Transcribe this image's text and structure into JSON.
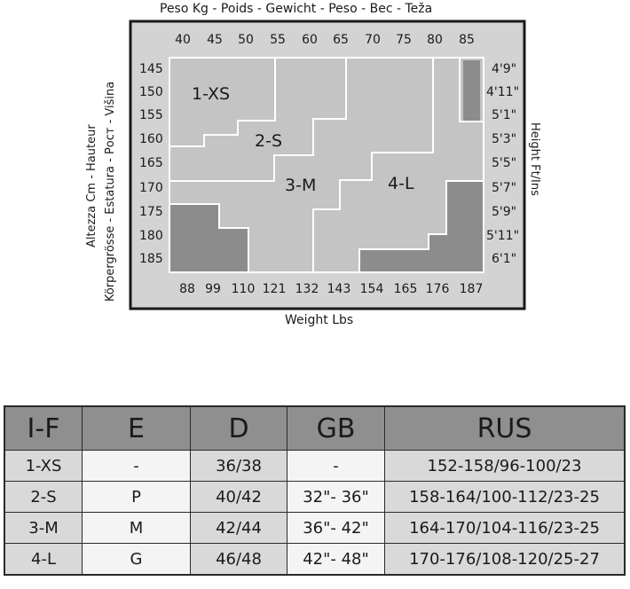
{
  "chart": {
    "top_label": "Peso Kg - Poids - Gewicht - Peso - Bec - Teža",
    "bottom_label": "Weight Lbs",
    "left_label_1": "Altezza Cm - Hauteur",
    "left_label_2": "Körpergrösse - Estatura - Рост - Višina",
    "right_label": "Height Ft/Ins",
    "kg_ticks": [
      "40",
      "45",
      "50",
      "55",
      "60",
      "65",
      "70",
      "75",
      "80",
      "85"
    ],
    "lbs_ticks": [
      "88",
      "99",
      "110",
      "121",
      "132",
      "143",
      "154",
      "165",
      "176",
      "187"
    ],
    "cm_ticks": [
      "145",
      "150",
      "155",
      "160",
      "165",
      "170",
      "175",
      "180",
      "185"
    ],
    "ft_ticks": [
      "4'9\"",
      "4'11\"",
      "5'1\"",
      "5'3\"",
      "5'5\"",
      "5'7\"",
      "5'9\"",
      "5'11\"",
      "6'1\""
    ],
    "zones": [
      "1-XS",
      "2-S",
      "3-M",
      "4-L"
    ],
    "colors": {
      "frame_bg": "#d3d3d3",
      "zone_bg": "#c4c4c4",
      "dark": "#8c8c8c",
      "line": "#ffffff",
      "border": "#1a1a1a"
    }
  },
  "table": {
    "headers": [
      "I-F",
      "E",
      "D",
      "GB",
      "RUS"
    ],
    "rows": [
      [
        "1-XS",
        "-",
        "36/38",
        "-",
        "152-158/96-100/23"
      ],
      [
        "2-S",
        "P",
        "40/42",
        "32\"- 36\"",
        "158-164/100-112/23-25"
      ],
      [
        "3-M",
        "M",
        "42/44",
        "36\"- 42\"",
        "164-170/104-116/23-25"
      ],
      [
        "4-L",
        "G",
        "46/48",
        "42\"- 48\"",
        "170-176/108-120/25-27"
      ]
    ]
  }
}
